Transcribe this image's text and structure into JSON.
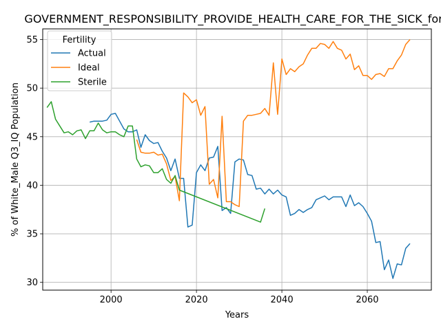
{
  "chart_data": {
    "type": "line",
    "title": "GOVERNMENT_RESPONSIBILITY_PROVIDE_HEALTH_CARE_FOR_THE_SICK_for_W",
    "xlabel": "Years",
    "ylabel": "% of White_Male Q3_IQ Population",
    "xlim": [
      1984,
      2075
    ],
    "ylim": [
      29.2,
      56.1
    ],
    "xticks": [
      2000,
      2020,
      2040,
      2060
    ],
    "yticks": [
      30,
      35,
      40,
      45,
      50,
      55
    ],
    "grid": true,
    "legend": {
      "title": "Fertility",
      "position": "top-left"
    },
    "series": [
      {
        "name": "Actual",
        "color": "#1f77b4",
        "x": [
          1995,
          1996,
          1997,
          1998,
          1999,
          2000,
          2001,
          2002,
          2003,
          2004,
          2005,
          2006,
          2007,
          2008,
          2009,
          2010,
          2011,
          2012,
          2013,
          2014,
          2015,
          2016,
          2017,
          2018,
          2019,
          2020,
          2021,
          2022,
          2023,
          2024,
          2025,
          2026,
          2027,
          2028,
          2029,
          2030,
          2031,
          2032,
          2033,
          2034,
          2035,
          2036,
          2037,
          2038,
          2039,
          2040,
          2041,
          2042,
          2043,
          2044,
          2045,
          2046,
          2047,
          2048,
          2049,
          2050,
          2051,
          2052,
          2053,
          2054,
          2055,
          2056,
          2057,
          2058,
          2059,
          2060,
          2061,
          2062,
          2063,
          2064,
          2065,
          2066,
          2067,
          2068,
          2069,
          2070
        ],
        "y": [
          46.5,
          46.6,
          46.6,
          46.6,
          46.7,
          47.3,
          47.4,
          46.6,
          45.8,
          45.5,
          45.5,
          45.7,
          43.9,
          45.2,
          44.6,
          44.3,
          44.4,
          43.5,
          42.8,
          41.5,
          42.7,
          40.7,
          40.7,
          35.7,
          35.9,
          41.3,
          42.1,
          41.5,
          42.8,
          42.9,
          44.0,
          37.4,
          37.7,
          37.1,
          42.4,
          42.7,
          42.6,
          41.1,
          41.0,
          39.6,
          39.7,
          39.1,
          39.6,
          39.1,
          39.5,
          39.0,
          38.8,
          36.9,
          37.1,
          37.5,
          37.2,
          37.5,
          37.7,
          38.5,
          38.7,
          38.9,
          38.5,
          38.8,
          38.8,
          38.8,
          37.8,
          39.0,
          37.9,
          38.2,
          37.8,
          37.1,
          36.3,
          34.1,
          34.2,
          31.3,
          32.3,
          30.4,
          31.9,
          31.8,
          33.5,
          34.0
        ]
      },
      {
        "name": "Ideal",
        "color": "#ff7f0e",
        "x": [
          2006,
          2007,
          2008,
          2009,
          2010,
          2011,
          2012,
          2013,
          2014,
          2015,
          2016,
          2017,
          2018,
          2019,
          2020,
          2021,
          2022,
          2023,
          2024,
          2025,
          2026,
          2027,
          2028,
          2029,
          2030,
          2031,
          2032,
          2033,
          2034,
          2035,
          2036,
          2037,
          2038,
          2039,
          2040,
          2041,
          2042,
          2043,
          2044,
          2045,
          2046,
          2047,
          2048,
          2049,
          2050,
          2051,
          2052,
          2053,
          2054,
          2055,
          2056,
          2057,
          2058,
          2059,
          2060,
          2061,
          2062,
          2063,
          2064,
          2065,
          2066,
          2067,
          2068,
          2069,
          2070
        ],
        "y": [
          44.7,
          43.4,
          43.3,
          43.3,
          43.4,
          43.1,
          43.2,
          42.2,
          40.5,
          40.9,
          38.4,
          49.5,
          49.1,
          48.5,
          48.8,
          47.2,
          48.1,
          40.1,
          40.6,
          38.7,
          47.1,
          38.3,
          38.3,
          38.0,
          37.8,
          46.6,
          47.2,
          47.2,
          47.3,
          47.4,
          47.9,
          47.2,
          52.6,
          47.3,
          53.0,
          51.4,
          52.0,
          51.7,
          52.2,
          52.5,
          53.4,
          54.1,
          54.1,
          54.6,
          54.5,
          54.1,
          54.8,
          54.1,
          53.9,
          53.0,
          53.5,
          51.9,
          52.3,
          51.3,
          51.3,
          50.9,
          51.4,
          51.5,
          51.2,
          52.0,
          52.0,
          52.8,
          53.4,
          54.5,
          55.0
        ]
      },
      {
        "name": "Sterile",
        "color": "#2ca02c",
        "x": [
          1985,
          1986,
          1987,
          1988,
          1989,
          1990,
          1991,
          1992,
          1993,
          1994,
          1995,
          1996,
          1997,
          1998,
          1999,
          2000,
          2001,
          2002,
          2003,
          2004,
          2005,
          2006,
          2007,
          2008,
          2009,
          2010,
          2011,
          2012,
          2013,
          2014,
          2015,
          2016,
          2035,
          2036
        ],
        "y": [
          48.0,
          48.6,
          46.8,
          46.1,
          45.4,
          45.5,
          45.2,
          45.6,
          45.7,
          44.8,
          45.6,
          45.6,
          46.4,
          45.7,
          45.4,
          45.5,
          45.5,
          45.2,
          45.0,
          46.1,
          46.1,
          42.7,
          41.9,
          42.1,
          42.0,
          41.3,
          41.3,
          41.7,
          40.6,
          40.2,
          41.0,
          39.5,
          36.2,
          37.6
        ]
      }
    ]
  }
}
